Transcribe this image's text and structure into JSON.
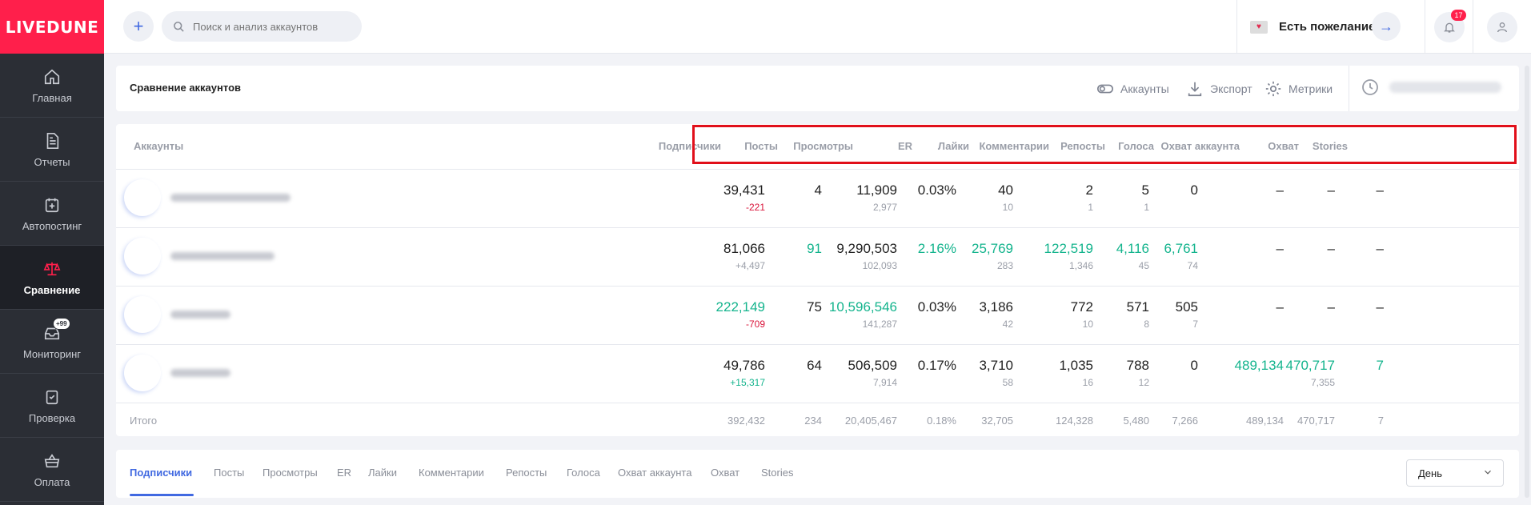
{
  "brand": "LIVEDUNE",
  "sidebar": {
    "items": [
      {
        "label": "Главная",
        "icon": "home-icon"
      },
      {
        "label": "Отчеты",
        "icon": "report-icon"
      },
      {
        "label": "Автопостинг",
        "icon": "calendar-plus-icon"
      },
      {
        "label": "Сравнение",
        "icon": "scales-icon",
        "active": true
      },
      {
        "label": "Мониторинг",
        "icon": "inbox-icon",
        "badge": "+99"
      },
      {
        "label": "Проверка",
        "icon": "shield-check-icon"
      },
      {
        "label": "Оплата",
        "icon": "basket-icon"
      }
    ]
  },
  "topbar": {
    "search_placeholder": "Поиск и анализ аккаунтов",
    "wish_label": "Есть пожелание?",
    "notifications_count": "17"
  },
  "header": {
    "title": "Сравнение аккаунтов",
    "actions": {
      "accounts": "Аккаунты",
      "export": "Экспорт",
      "metrics": "Метрики"
    }
  },
  "table": {
    "account_header": "Аккаунты",
    "columns": [
      "Подписчики",
      "Посты",
      "Просмотры",
      "ER",
      "Лайки",
      "Комментарии",
      "Репосты",
      "Голоса",
      "Охват аккаунта",
      "Охват",
      "Stories"
    ],
    "rows": [
      {
        "cells": [
          {
            "v": "39,431",
            "s": "-221",
            "sc": "r"
          },
          {
            "v": "4"
          },
          {
            "v": "11,909",
            "s": "2,977"
          },
          {
            "v": "0.03%"
          },
          {
            "v": "40",
            "s": "10"
          },
          {
            "v": "2",
            "s": "1"
          },
          {
            "v": "5",
            "s": "1"
          },
          {
            "v": "0"
          },
          {
            "v": "–"
          },
          {
            "v": "–"
          },
          {
            "v": "–"
          }
        ]
      },
      {
        "cells": [
          {
            "v": "81,066",
            "s": "+4,497"
          },
          {
            "v": "91",
            "g": true
          },
          {
            "v": "9,290,503",
            "s": "102,093"
          },
          {
            "v": "2.16%",
            "g": true
          },
          {
            "v": "25,769",
            "s": "283",
            "g": true
          },
          {
            "v": "122,519",
            "s": "1,346",
            "g": true
          },
          {
            "v": "4,116",
            "s": "45",
            "g": true
          },
          {
            "v": "6,761",
            "s": "74",
            "g": true
          },
          {
            "v": "–"
          },
          {
            "v": "–"
          },
          {
            "v": "–"
          }
        ]
      },
      {
        "cells": [
          {
            "v": "222,149",
            "s": "-709",
            "sc": "r",
            "g": true
          },
          {
            "v": "75"
          },
          {
            "v": "10,596,546",
            "s": "141,287",
            "g": true
          },
          {
            "v": "0.03%"
          },
          {
            "v": "3,186",
            "s": "42"
          },
          {
            "v": "772",
            "s": "10"
          },
          {
            "v": "571",
            "s": "8"
          },
          {
            "v": "505",
            "s": "7"
          },
          {
            "v": "–"
          },
          {
            "v": "–"
          },
          {
            "v": "–"
          }
        ]
      },
      {
        "cells": [
          {
            "v": "49,786",
            "s": "+15,317",
            "sc": "gs"
          },
          {
            "v": "64"
          },
          {
            "v": "506,509",
            "s": "7,914"
          },
          {
            "v": "0.17%"
          },
          {
            "v": "3,710",
            "s": "58"
          },
          {
            "v": "1,035",
            "s": "16"
          },
          {
            "v": "788",
            "s": "12"
          },
          {
            "v": "0"
          },
          {
            "v": "489,134",
            "g": true
          },
          {
            "v": "470,717",
            "s": "7,355",
            "g": true
          },
          {
            "v": "7",
            "g": true
          }
        ]
      }
    ],
    "total_label": "Итого",
    "totals": [
      "392,432",
      "234",
      "20,405,467",
      "0.18%",
      "32,705",
      "124,328",
      "5,480",
      "7,266",
      "489,134",
      "470,717",
      "7"
    ]
  },
  "tabs": [
    "Подписчики",
    "Посты",
    "Просмотры",
    "ER",
    "Лайки",
    "Комментарии",
    "Репосты",
    "Голоса",
    "Охват аккаунта",
    "Охват",
    "Stories"
  ],
  "period_select": "День",
  "colors": {
    "brand": "#ff1f4b",
    "accent": "#4169e1",
    "positive": "#14b48d",
    "negative": "#d9143a"
  }
}
